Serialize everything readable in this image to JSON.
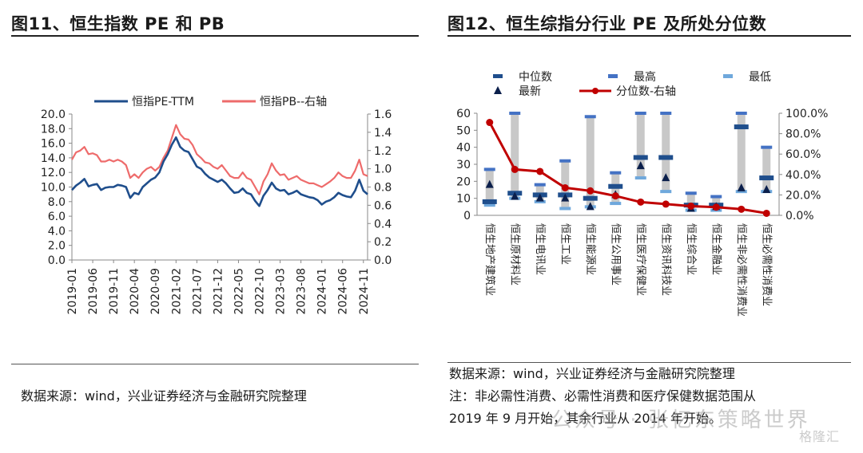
{
  "left_panel": {
    "title": "图11、恒生指数 PE 和 PB",
    "source": "数据来源：wind，兴业证券经济与金融研究院整理"
  },
  "right_panel": {
    "title": "图12、恒生综指分行业 PE 及所处分位数",
    "source": "数据来源：wind，兴业证券经济与金融研究院整理",
    "note_line1": "注：非必需性消费、必需性消费和医疗保健数据范围从",
    "note_line2": "2019 年 9 月开始，其余行业从 2014 年开始。"
  },
  "watermark": {
    "text1": "公众号 · 张忆东策略世界",
    "text2": "格隆汇"
  },
  "colors": {
    "pe_line": "#1f4e8c",
    "pb_line": "#ee6b6b",
    "range_bar": "#c8c8c8",
    "median": "#1f4e8c",
    "high": "#4472c4",
    "low": "#6fa8dc",
    "latest": "#0b1f4b",
    "percentile": "#c00000"
  },
  "chart_data": [
    {
      "type": "line",
      "legend": [
        "恒指PE-TTM",
        "恒指PB--右轴"
      ],
      "x_ticks": [
        "2019-01",
        "2019-06",
        "2019-11",
        "2020-04",
        "2020-09",
        "2021-02",
        "2021-07",
        "2021-12",
        "2022-05",
        "2022-10",
        "2023-03",
        "2023-08",
        "2024-01",
        "2024-06",
        "2024-11"
      ],
      "y_left_ticks": [
        "0.0",
        "2.0",
        "4.0",
        "6.0",
        "8.0",
        "10.0",
        "12.0",
        "14.0",
        "16.0",
        "18.0",
        "20.0"
      ],
      "y_right_ticks": [
        "0.0",
        "0.2",
        "0.4",
        "0.6",
        "0.8",
        "1.0",
        "1.2",
        "1.4",
        "1.6"
      ],
      "ylim_left": [
        0,
        20
      ],
      "ylim_right": [
        0,
        1.6
      ],
      "series": [
        {
          "name": "恒指PE-TTM",
          "axis": "left",
          "points": [
            [
              "2019-01",
              9.6
            ],
            [
              "2019-02",
              10.2
            ],
            [
              "2019-03",
              10.6
            ],
            [
              "2019-04",
              11.1
            ],
            [
              "2019-05",
              10.1
            ],
            [
              "2019-06",
              10.3
            ],
            [
              "2019-07",
              10.4
            ],
            [
              "2019-08",
              9.6
            ],
            [
              "2019-09",
              9.9
            ],
            [
              "2019-10",
              10.0
            ],
            [
              "2019-11",
              10.0
            ],
            [
              "2019-12",
              10.3
            ],
            [
              "2020-01",
              10.2
            ],
            [
              "2020-02",
              10.0
            ],
            [
              "2020-03",
              8.5
            ],
            [
              "2020-04",
              9.2
            ],
            [
              "2020-05",
              9.0
            ],
            [
              "2020-06",
              10.0
            ],
            [
              "2020-07",
              10.5
            ],
            [
              "2020-08",
              11.0
            ],
            [
              "2020-09",
              11.3
            ],
            [
              "2020-10",
              12.0
            ],
            [
              "2020-11",
              13.5
            ],
            [
              "2020-12",
              14.5
            ],
            [
              "2021-01",
              15.8
            ],
            [
              "2021-02",
              16.8
            ],
            [
              "2021-03",
              15.5
            ],
            [
              "2021-04",
              15.0
            ],
            [
              "2021-05",
              14.8
            ],
            [
              "2021-06",
              13.8
            ],
            [
              "2021-07",
              12.8
            ],
            [
              "2021-08",
              12.5
            ],
            [
              "2021-09",
              11.8
            ],
            [
              "2021-10",
              11.3
            ],
            [
              "2021-11",
              11.0
            ],
            [
              "2021-12",
              10.7
            ],
            [
              "2022-01",
              11.0
            ],
            [
              "2022-02",
              10.5
            ],
            [
              "2022-03",
              9.8
            ],
            [
              "2022-04",
              9.2
            ],
            [
              "2022-05",
              9.3
            ],
            [
              "2022-06",
              9.8
            ],
            [
              "2022-07",
              9.2
            ],
            [
              "2022-08",
              9.0
            ],
            [
              "2022-09",
              8.1
            ],
            [
              "2022-10",
              7.4
            ],
            [
              "2022-11",
              8.8
            ],
            [
              "2022-12",
              9.6
            ],
            [
              "2023-01",
              10.6
            ],
            [
              "2023-02",
              9.8
            ],
            [
              "2023-03",
              9.5
            ],
            [
              "2023-04",
              9.6
            ],
            [
              "2023-05",
              9.0
            ],
            [
              "2023-06",
              9.2
            ],
            [
              "2023-07",
              9.5
            ],
            [
              "2023-08",
              9.0
            ],
            [
              "2023-09",
              8.8
            ],
            [
              "2023-10",
              8.6
            ],
            [
              "2023-11",
              8.5
            ],
            [
              "2023-12",
              8.2
            ],
            [
              "2024-01",
              7.6
            ],
            [
              "2024-02",
              8.0
            ],
            [
              "2024-03",
              8.2
            ],
            [
              "2024-04",
              8.6
            ],
            [
              "2024-05",
              9.2
            ],
            [
              "2024-06",
              8.9
            ],
            [
              "2024-07",
              8.7
            ],
            [
              "2024-08",
              8.6
            ],
            [
              "2024-09",
              9.5
            ],
            [
              "2024-10",
              11.0
            ],
            [
              "2024-11",
              9.5
            ],
            [
              "2024-12",
              9.0
            ]
          ]
        },
        {
          "name": "恒指PB--右轴",
          "axis": "right",
          "points": [
            [
              "2019-01",
              1.1
            ],
            [
              "2019-02",
              1.18
            ],
            [
              "2019-03",
              1.2
            ],
            [
              "2019-04",
              1.24
            ],
            [
              "2019-05",
              1.16
            ],
            [
              "2019-06",
              1.17
            ],
            [
              "2019-07",
              1.15
            ],
            [
              "2019-08",
              1.08
            ],
            [
              "2019-09",
              1.08
            ],
            [
              "2019-10",
              1.1
            ],
            [
              "2019-11",
              1.08
            ],
            [
              "2019-12",
              1.1
            ],
            [
              "2020-01",
              1.08
            ],
            [
              "2020-02",
              1.04
            ],
            [
              "2020-03",
              0.9
            ],
            [
              "2020-04",
              0.94
            ],
            [
              "2020-05",
              0.9
            ],
            [
              "2020-06",
              0.96
            ],
            [
              "2020-07",
              1.0
            ],
            [
              "2020-08",
              1.02
            ],
            [
              "2020-09",
              0.98
            ],
            [
              "2020-10",
              1.02
            ],
            [
              "2020-11",
              1.12
            ],
            [
              "2020-12",
              1.2
            ],
            [
              "2021-01",
              1.34
            ],
            [
              "2021-02",
              1.48
            ],
            [
              "2021-03",
              1.38
            ],
            [
              "2021-04",
              1.33
            ],
            [
              "2021-05",
              1.32
            ],
            [
              "2021-06",
              1.26
            ],
            [
              "2021-07",
              1.16
            ],
            [
              "2021-08",
              1.12
            ],
            [
              "2021-09",
              1.07
            ],
            [
              "2021-10",
              1.06
            ],
            [
              "2021-11",
              1.02
            ],
            [
              "2021-12",
              1.0
            ],
            [
              "2022-01",
              1.04
            ],
            [
              "2022-02",
              0.98
            ],
            [
              "2022-03",
              0.92
            ],
            [
              "2022-04",
              0.9
            ],
            [
              "2022-05",
              0.9
            ],
            [
              "2022-06",
              0.96
            ],
            [
              "2022-07",
              0.9
            ],
            [
              "2022-08",
              0.88
            ],
            [
              "2022-09",
              0.8
            ],
            [
              "2022-10",
              0.72
            ],
            [
              "2022-11",
              0.86
            ],
            [
              "2022-12",
              0.94
            ],
            [
              "2023-01",
              1.06
            ],
            [
              "2023-02",
              0.98
            ],
            [
              "2023-03",
              0.93
            ],
            [
              "2023-04",
              0.94
            ],
            [
              "2023-05",
              0.88
            ],
            [
              "2023-06",
              0.9
            ],
            [
              "2023-07",
              0.92
            ],
            [
              "2023-08",
              0.88
            ],
            [
              "2023-09",
              0.86
            ],
            [
              "2023-10",
              0.84
            ],
            [
              "2023-11",
              0.84
            ],
            [
              "2023-12",
              0.82
            ],
            [
              "2024-01",
              0.8
            ],
            [
              "2024-02",
              0.83
            ],
            [
              "2024-03",
              0.86
            ],
            [
              "2024-04",
              0.9
            ],
            [
              "2024-05",
              0.96
            ],
            [
              "2024-06",
              0.92
            ],
            [
              "2024-07",
              0.9
            ],
            [
              "2024-08",
              0.9
            ],
            [
              "2024-09",
              0.98
            ],
            [
              "2024-10",
              1.1
            ],
            [
              "2024-11",
              0.94
            ],
            [
              "2024-12",
              0.92
            ]
          ]
        }
      ]
    },
    {
      "type": "bar",
      "legend": [
        "中位数",
        "最高",
        "最低",
        "最新",
        "分位数-右轴"
      ],
      "categories": [
        "恒生地产建筑业",
        "恒生原材料业",
        "恒生电讯业",
        "恒生工业",
        "恒生能源业",
        "恒生公用事业",
        "恒生医疗保健业",
        "恒生资讯科技业",
        "恒生综合业",
        "恒生金融业",
        "恒生非必需性消费业",
        "恒生必需性消费业"
      ],
      "y_left_ticks": [
        "0",
        "10",
        "20",
        "30",
        "40",
        "50",
        "60"
      ],
      "y_right_ticks": [
        "0.0%",
        "20.0%",
        "40.0%",
        "60.0%",
        "80.0%",
        "100.0%"
      ],
      "ylim_left": [
        0,
        60
      ],
      "ylim_right": [
        0,
        100
      ],
      "series": [
        {
          "name": "最低",
          "values": [
            6,
            10,
            8,
            4,
            5,
            7,
            22,
            14,
            3,
            3,
            14,
            14
          ]
        },
        {
          "name": "最高",
          "values": [
            27,
            62,
            18,
            32,
            58,
            25,
            62,
            62,
            13,
            11,
            62,
            40
          ]
        },
        {
          "name": "中位数",
          "values": [
            8,
            13,
            12,
            12,
            10,
            17,
            34,
            34,
            6,
            6,
            52,
            22
          ]
        },
        {
          "name": "最新",
          "values": [
            18,
            11,
            10,
            10,
            5,
            12,
            29,
            22,
            4,
            5,
            16,
            15
          ]
        },
        {
          "name": "分位数-右轴",
          "values": [
            91,
            45,
            43,
            27,
            24,
            19,
            13,
            11,
            9,
            8,
            6,
            2
          ]
        }
      ]
    }
  ]
}
